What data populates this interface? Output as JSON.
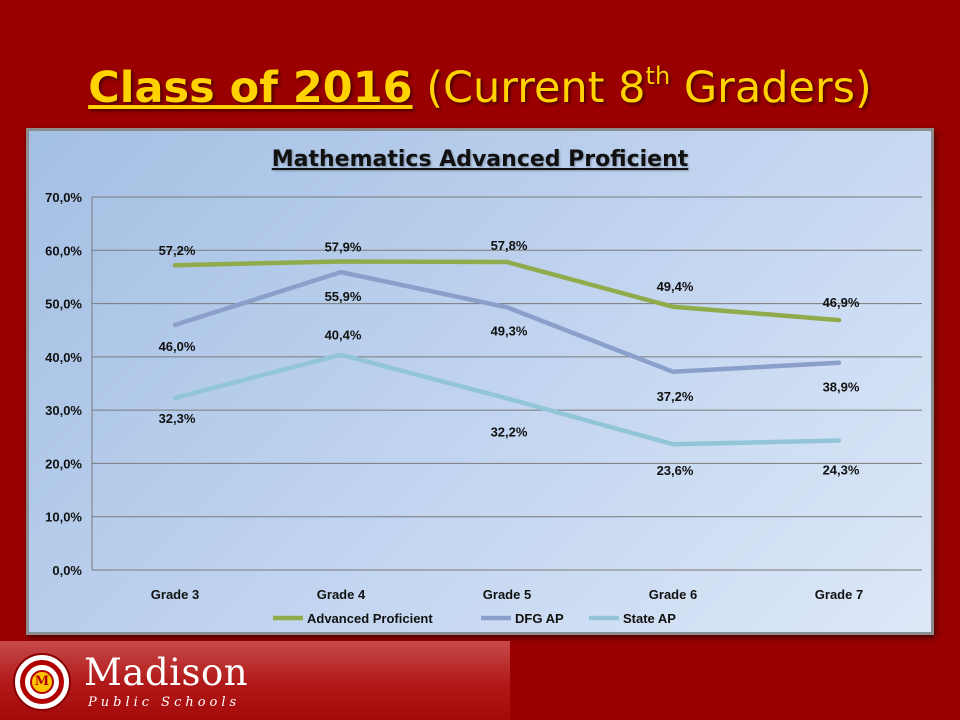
{
  "slide": {
    "title_strong": "Class of 2016",
    "title_rest": " (Current 8",
    "title_sup": "th",
    "title_end": " Graders)"
  },
  "branding": {
    "name": "Madison",
    "subtitle": "Public Schools",
    "seal_letter": "M"
  },
  "colors": {
    "background": "#9a0000",
    "title": "#ffd200",
    "advanced_proficient": "#8fab4b",
    "dfg_ap": "#8aa0cb",
    "state_ap": "#92c5d8"
  },
  "chart_data": {
    "type": "line",
    "title": "Mathematics Advanced Proficient",
    "categories": [
      "Grade 3",
      "Grade 4",
      "Grade 5",
      "Grade 6",
      "Grade 7"
    ],
    "ylim": [
      0,
      70
    ],
    "yticks": [
      "0,0%",
      "10,0%",
      "20,0%",
      "30,0%",
      "40,0%",
      "50,0%",
      "60,0%",
      "70,0%"
    ],
    "grid": true,
    "legend": "bottom",
    "series": [
      {
        "name": "Advanced Proficient",
        "values": [
          57.2,
          57.9,
          57.8,
          49.4,
          46.9
        ],
        "labels": [
          "57,2%",
          "57,9%",
          "57,8%",
          "49,4%",
          "46,9%"
        ]
      },
      {
        "name": "DFG AP",
        "values": [
          46.0,
          55.9,
          49.3,
          37.2,
          38.9
        ],
        "labels": [
          "46,0%",
          "55,9%",
          "49,3%",
          "37,2%",
          "38,9%"
        ]
      },
      {
        "name": "State AP",
        "values": [
          32.3,
          40.4,
          32.2,
          23.6,
          24.3
        ],
        "labels": [
          "32,3%",
          "40,4%",
          "32,2%",
          "23,6%",
          "24,3%"
        ]
      }
    ]
  }
}
